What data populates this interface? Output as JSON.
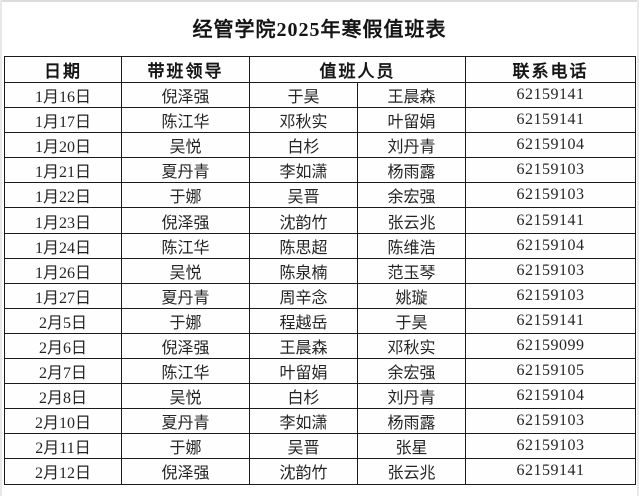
{
  "title": "经管学院2025年寒假值班表",
  "table": {
    "headers": {
      "date": "日期",
      "leader": "带班领导",
      "staff": "值班人员",
      "phone": "联系电话"
    },
    "rows": [
      {
        "date": "1月16日",
        "leader": "倪泽强",
        "staff1": "于昊",
        "staff2": "王晨森",
        "phone": "62159141"
      },
      {
        "date": "1月17日",
        "leader": "陈江华",
        "staff1": "邓秋实",
        "staff2": "叶留娟",
        "phone": "62159141"
      },
      {
        "date": "1月20日",
        "leader": "吴悦",
        "staff1": "白杉",
        "staff2": "刘丹青",
        "phone": "62159104"
      },
      {
        "date": "1月21日",
        "leader": "夏丹青",
        "staff1": "李如潇",
        "staff2": "杨雨露",
        "phone": "62159103"
      },
      {
        "date": "1月22日",
        "leader": "于娜",
        "staff1": "吴晋",
        "staff2": "余宏强",
        "phone": "62159103"
      },
      {
        "date": "1月23日",
        "leader": "倪泽强",
        "staff1": "沈韵竹",
        "staff2": "张云兆",
        "phone": "62159141"
      },
      {
        "date": "1月24日",
        "leader": "陈江华",
        "staff1": "陈思超",
        "staff2": "陈维浩",
        "phone": "62159104"
      },
      {
        "date": "1月26日",
        "leader": "吴悦",
        "staff1": "陈泉楠",
        "staff2": "范玉琴",
        "phone": "62159103"
      },
      {
        "date": "1月27日",
        "leader": "夏丹青",
        "staff1": "周辛念",
        "staff2": "姚璇",
        "phone": "62159103"
      },
      {
        "date": "2月5日",
        "leader": "于娜",
        "staff1": "程越岳",
        "staff2": "于昊",
        "phone": "62159141"
      },
      {
        "date": "2月6日",
        "leader": "倪泽强",
        "staff1": "王晨森",
        "staff2": "邓秋实",
        "phone": "62159099"
      },
      {
        "date": "2月7日",
        "leader": "陈江华",
        "staff1": "叶留娟",
        "staff2": "余宏强",
        "phone": "62159105"
      },
      {
        "date": "2月8日",
        "leader": "吴悦",
        "staff1": "白杉",
        "staff2": "刘丹青",
        "phone": "62159104"
      },
      {
        "date": "2月10日",
        "leader": "夏丹青",
        "staff1": "李如潇",
        "staff2": "杨雨露",
        "phone": "62159103"
      },
      {
        "date": "2月11日",
        "leader": "于娜",
        "staff1": "吴晋",
        "staff2": "张星",
        "phone": "62159103"
      },
      {
        "date": "2月12日",
        "leader": "倪泽强",
        "staff1": "沈韵竹",
        "staff2": "张云兆",
        "phone": "62159141"
      }
    ]
  },
  "colors": {
    "border": "#1b1b1b",
    "text": "#242424",
    "background": "#ffffff"
  }
}
